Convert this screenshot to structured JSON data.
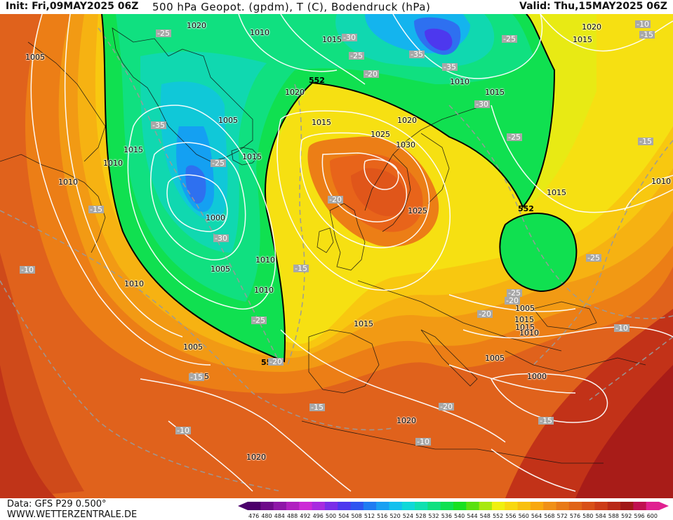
{
  "header": {
    "init": "Init: Fri,09MAY2025 06Z",
    "product": "500 hPa Geopot. (gpdm), T (C), Bodendruck (hPa)",
    "valid": "Valid: Thu,15MAY2025 06Z"
  },
  "footer": {
    "data_source": "Data: GFS P29 0.500°",
    "website": "WWW.WETTERZENTRALE.DE"
  },
  "legend": {
    "ticks": [
      "476",
      "480",
      "484",
      "488",
      "492",
      "496",
      "500",
      "504",
      "508",
      "512",
      "516",
      "520",
      "524",
      "528",
      "532",
      "536",
      "540",
      "544",
      "548",
      "552",
      "556",
      "560",
      "564",
      "568",
      "572",
      "576",
      "580",
      "584",
      "588",
      "592",
      "596",
      "600"
    ],
    "colors": [
      "#4b006b",
      "#6e0a8a",
      "#8e16a8",
      "#b020c0",
      "#cc2ad6",
      "#a82be0",
      "#7a2ee8",
      "#4d38ee",
      "#2e55f0",
      "#1f7cf2",
      "#1aa0f2",
      "#14c0ee",
      "#10d8d8",
      "#10e0b0",
      "#10e080",
      "#10e050",
      "#18e020",
      "#5ae010",
      "#a8e810",
      "#f0f010",
      "#f8d810",
      "#f8c010",
      "#f8a810",
      "#f09018",
      "#e87a18",
      "#e06418",
      "#d85018",
      "#cc3c18",
      "#b82a18",
      "#a01818",
      "#c01050",
      "#e02090"
    ]
  },
  "isobars": [
    {
      "label": "1005"
    },
    {
      "label": "1020"
    },
    {
      "label": "1010"
    },
    {
      "label": "1015"
    },
    {
      "label": "1020"
    },
    {
      "label": "1015"
    },
    {
      "label": "1020"
    },
    {
      "label": "1010"
    },
    {
      "label": "1015"
    },
    {
      "label": "1020"
    },
    {
      "label": "1005"
    },
    {
      "label": "1015"
    },
    {
      "label": "1025"
    },
    {
      "label": "1030"
    },
    {
      "label": "1015"
    },
    {
      "label": "1010"
    },
    {
      "label": "1015"
    },
    {
      "label": "1010"
    },
    {
      "label": "1000"
    },
    {
      "label": "1010"
    },
    {
      "label": "1025"
    },
    {
      "label": "1005"
    },
    {
      "label": "1010"
    },
    {
      "label": "1010"
    },
    {
      "label": "1015"
    },
    {
      "label": "1005"
    },
    {
      "label": "1015"
    },
    {
      "label": "1015"
    },
    {
      "label": "1010"
    },
    {
      "label": "1005"
    },
    {
      "label": "1000"
    },
    {
      "label": "1015"
    },
    {
      "label": "1020"
    },
    {
      "label": "1005"
    },
    {
      "label": "1010"
    },
    {
      "label": "1015"
    },
    {
      "label": "1020"
    }
  ],
  "temperatures": [
    {
      "label": "-25"
    },
    {
      "label": "-30"
    },
    {
      "label": "-35"
    },
    {
      "label": "-25"
    },
    {
      "label": "-35"
    },
    {
      "label": "-25"
    },
    {
      "label": "-15"
    },
    {
      "label": "-35"
    },
    {
      "label": "-20"
    },
    {
      "label": "-30"
    },
    {
      "label": "-25"
    },
    {
      "label": "-25"
    },
    {
      "label": "-25"
    },
    {
      "label": "-20"
    },
    {
      "label": "-15"
    },
    {
      "label": "-20"
    },
    {
      "label": "-15"
    },
    {
      "label": "-30"
    },
    {
      "label": "-20"
    },
    {
      "label": "-25"
    },
    {
      "label": "-25"
    },
    {
      "label": "-10"
    },
    {
      "label": "-20"
    },
    {
      "label": "-10"
    },
    {
      "label": "-15"
    },
    {
      "label": "-20"
    },
    {
      "label": "-15"
    },
    {
      "label": "-15"
    },
    {
      "label": "-10"
    },
    {
      "label": "-10"
    },
    {
      "label": "-10"
    },
    {
      "label": "-15"
    }
  ],
  "height_contour_labels": [
    {
      "label": "552"
    },
    {
      "label": "552"
    },
    {
      "label": "552"
    }
  ]
}
